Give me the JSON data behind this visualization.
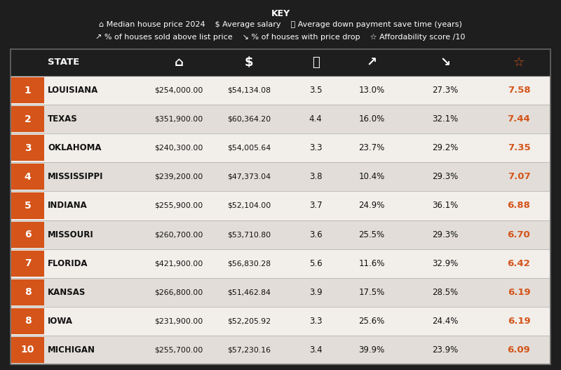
{
  "title": "KEY",
  "key_line1": "⌂ Median house price 2024   $ Average salary   ⧉ Average down payment save time (years)",
  "key_line2": "↗ % of houses sold above list price   ↘ % of houses with price drop   ☆ Affordability score /10",
  "ranks": [
    "1",
    "2",
    "3",
    "4",
    "5",
    "6",
    "7",
    "8",
    "8",
    "10"
  ],
  "states": [
    "LOUISIANA",
    "TEXAS",
    "OKLAHOMA",
    "MISSISSIPPI",
    "INDIANA",
    "MISSOURI",
    "FLORIDA",
    "KANSAS",
    "IOWA",
    "MICHIGAN"
  ],
  "house_price": [
    "$254,000.00",
    "$351,900.00",
    "$240,300.00",
    "$239,200.00",
    "$255,900.00",
    "$260,700.00",
    "$421,900.00",
    "$266,800.00",
    "$231,900.00",
    "$255,700.00"
  ],
  "avg_salary": [
    "$54,134.08",
    "$60,364.20",
    "$54,005.64",
    "$47,373.04",
    "$52,104.00",
    "$53,710.80",
    "$56,830.28",
    "$51,462.84",
    "$52,205.92",
    "$57,230.16"
  ],
  "down_payment": [
    "3.5",
    "4.4",
    "3.3",
    "3.8",
    "3.7",
    "3.6",
    "5.6",
    "3.9",
    "3.3",
    "3.4"
  ],
  "sold_above": [
    "13.0%",
    "16.0%",
    "23.7%",
    "10.4%",
    "24.9%",
    "25.5%",
    "11.6%",
    "17.5%",
    "25.6%",
    "39.9%"
  ],
  "price_drop": [
    "27.3%",
    "32.1%",
    "29.2%",
    "29.3%",
    "36.1%",
    "29.3%",
    "32.9%",
    "28.5%",
    "24.4%",
    "23.9%"
  ],
  "afford_score": [
    "7.58",
    "7.44",
    "7.35",
    "7.07",
    "6.88",
    "6.70",
    "6.42",
    "6.19",
    "6.19",
    "6.09"
  ],
  "bg_color": "#1e1e1e",
  "row_light": "#f2eeea",
  "row_dark": "#e2ddd8",
  "orange": "#d4541a",
  "white": "#ffffff",
  "text_dark": "#111111",
  "header_key_line1": "⌂ Median house price 2024   $ Average salary   ⧉ Average down payment save time (years)",
  "header_key_line2": "⇱ % of houses sold above list price   ⇲ % of houses with price drop   ☆ Affordability score /10",
  "col_icons": [
    "⌂",
    "$",
    "⧉",
    "↗",
    "↘",
    "☆"
  ]
}
